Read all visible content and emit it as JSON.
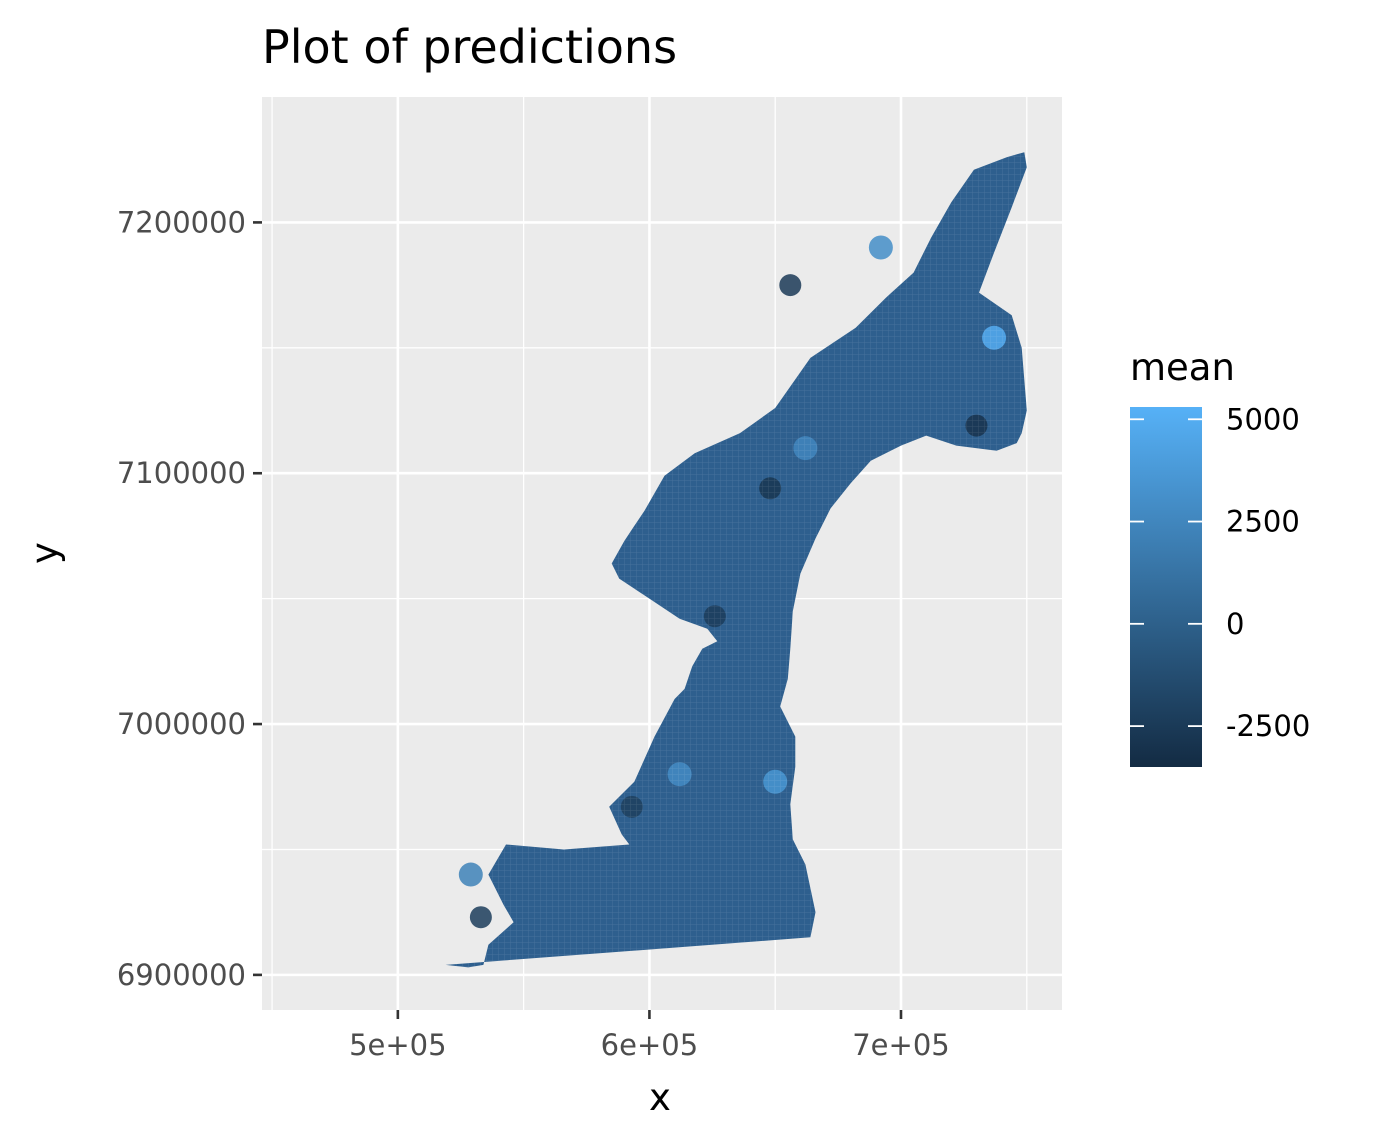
{
  "chart_data": {
    "type": "heatmap",
    "title": "Plot of predictions",
    "xlabel": "x",
    "ylabel": "y",
    "xlim": [
      446000,
      764000
    ],
    "ylim": [
      6886000,
      7250000
    ],
    "x_ticks": [
      500000,
      600000,
      700000
    ],
    "x_tick_labels": [
      "5e+05",
      "6e+05",
      "7e+05"
    ],
    "x_minor": [
      450000,
      550000,
      650000,
      750000
    ],
    "y_ticks": [
      6900000,
      7000000,
      7100000,
      7200000
    ],
    "y_tick_labels": [
      "6900000",
      "7000000",
      "7100000",
      "7200000"
    ],
    "y_minor": [
      6950000,
      7050000,
      7150000
    ],
    "grid": true,
    "legend": {
      "title": "mean",
      "position": "right",
      "min": -3500,
      "max": 5300,
      "breaks": [
        5000,
        2500,
        0,
        -2500
      ],
      "break_labels": [
        "5000",
        "2500",
        "0",
        "-2500"
      ],
      "low_color": "#132b43",
      "high_color": "#56b1f7"
    },
    "region_outline": [
      [
        519000,
        6904000
      ],
      [
        528000,
        6903000
      ],
      [
        534000,
        6904000
      ],
      [
        536000,
        6912000
      ],
      [
        546000,
        6921000
      ],
      [
        542000,
        6928000
      ],
      [
        536000,
        6940000
      ],
      [
        543000,
        6952000
      ],
      [
        566000,
        6950000
      ],
      [
        592000,
        6952000
      ],
      [
        604000,
        6948000
      ],
      [
        623000,
        6951000
      ],
      [
        636000,
        6944000
      ],
      [
        649000,
        6941000
      ],
      [
        657000,
        6938000
      ],
      [
        661000,
        6926000
      ],
      [
        664000,
        6915000
      ],
      [
        657000,
        6925000
      ],
      [
        650000,
        6928000
      ],
      [
        640000,
        6924000
      ],
      [
        631000,
        6920000
      ],
      [
        627000,
        6929000
      ],
      [
        616000,
        6932000
      ],
      [
        608000,
        6945000
      ],
      [
        598000,
        6944000
      ],
      [
        589000,
        6956000
      ],
      [
        584000,
        6967000
      ],
      [
        594000,
        6977000
      ],
      [
        602000,
        6995000
      ],
      [
        610000,
        7010000
      ],
      [
        614000,
        7014000
      ],
      [
        617000,
        7023000
      ],
      [
        621000,
        7030000
      ],
      [
        627000,
        7033000
      ],
      [
        623000,
        7038000
      ],
      [
        612000,
        7042000
      ],
      [
        600000,
        7050000
      ],
      [
        588000,
        7058000
      ],
      [
        585000,
        7064000
      ],
      [
        590000,
        7073000
      ],
      [
        594000,
        7079000
      ],
      [
        598000,
        7085000
      ],
      [
        606000,
        7099000
      ],
      [
        618000,
        7108000
      ],
      [
        636000,
        7116000
      ],
      [
        650000,
        7126000
      ],
      [
        664000,
        7146000
      ],
      [
        682000,
        7158000
      ],
      [
        694000,
        7170000
      ],
      [
        705000,
        7180000
      ],
      [
        712000,
        7194000
      ],
      [
        720000,
        7208000
      ],
      [
        729000,
        7221000
      ],
      [
        742000,
        7226000
      ],
      [
        749000,
        7228000
      ],
      [
        750000,
        7222000
      ],
      [
        744000,
        7206000
      ],
      [
        737000,
        7188000
      ],
      [
        731000,
        7172000
      ],
      [
        744000,
        7163000
      ],
      [
        748000,
        7150000
      ],
      [
        750000,
        7125000
      ],
      [
        748000,
        7116000
      ],
      [
        746000,
        7112000
      ],
      [
        738000,
        7109000
      ],
      [
        722000,
        7111000
      ],
      [
        710000,
        7115000
      ],
      [
        700000,
        7111000
      ],
      [
        688000,
        7105000
      ],
      [
        680000,
        7096000
      ],
      [
        672000,
        7086000
      ],
      [
        666000,
        7074000
      ],
      [
        660000,
        7060000
      ],
      [
        657000,
        7045000
      ],
      [
        656000,
        7030000
      ],
      [
        655000,
        7018000
      ],
      [
        652000,
        7007000
      ],
      [
        658000,
        6995000
      ],
      [
        658000,
        6983000
      ],
      [
        656000,
        6968000
      ],
      [
        657000,
        6954000
      ],
      [
        662000,
        6944000
      ],
      [
        666000,
        6925000
      ],
      [
        664000,
        6915000
      ]
    ],
    "fill_color": "#2e5f8e",
    "bright_spots": [
      {
        "x": 737000,
        "y": 7154000,
        "value": 5000
      },
      {
        "x": 692000,
        "y": 7190000,
        "value": 3000
      },
      {
        "x": 650000,
        "y": 6977000,
        "value": 3500
      },
      {
        "x": 612000,
        "y": 6980000,
        "value": 2800
      },
      {
        "x": 529000,
        "y": 6940000,
        "value": 2200
      },
      {
        "x": 662000,
        "y": 7110000,
        "value": 2500
      }
    ],
    "dark_spots": [
      {
        "x": 730000,
        "y": 7119000,
        "value": -3000
      },
      {
        "x": 648000,
        "y": 7094000,
        "value": -2800
      },
      {
        "x": 656000,
        "y": 7175000,
        "value": -2500
      },
      {
        "x": 593000,
        "y": 6967000,
        "value": -2200
      },
      {
        "x": 626000,
        "y": 7043000,
        "value": -2400
      },
      {
        "x": 533000,
        "y": 6923000,
        "value": -2300
      }
    ]
  }
}
